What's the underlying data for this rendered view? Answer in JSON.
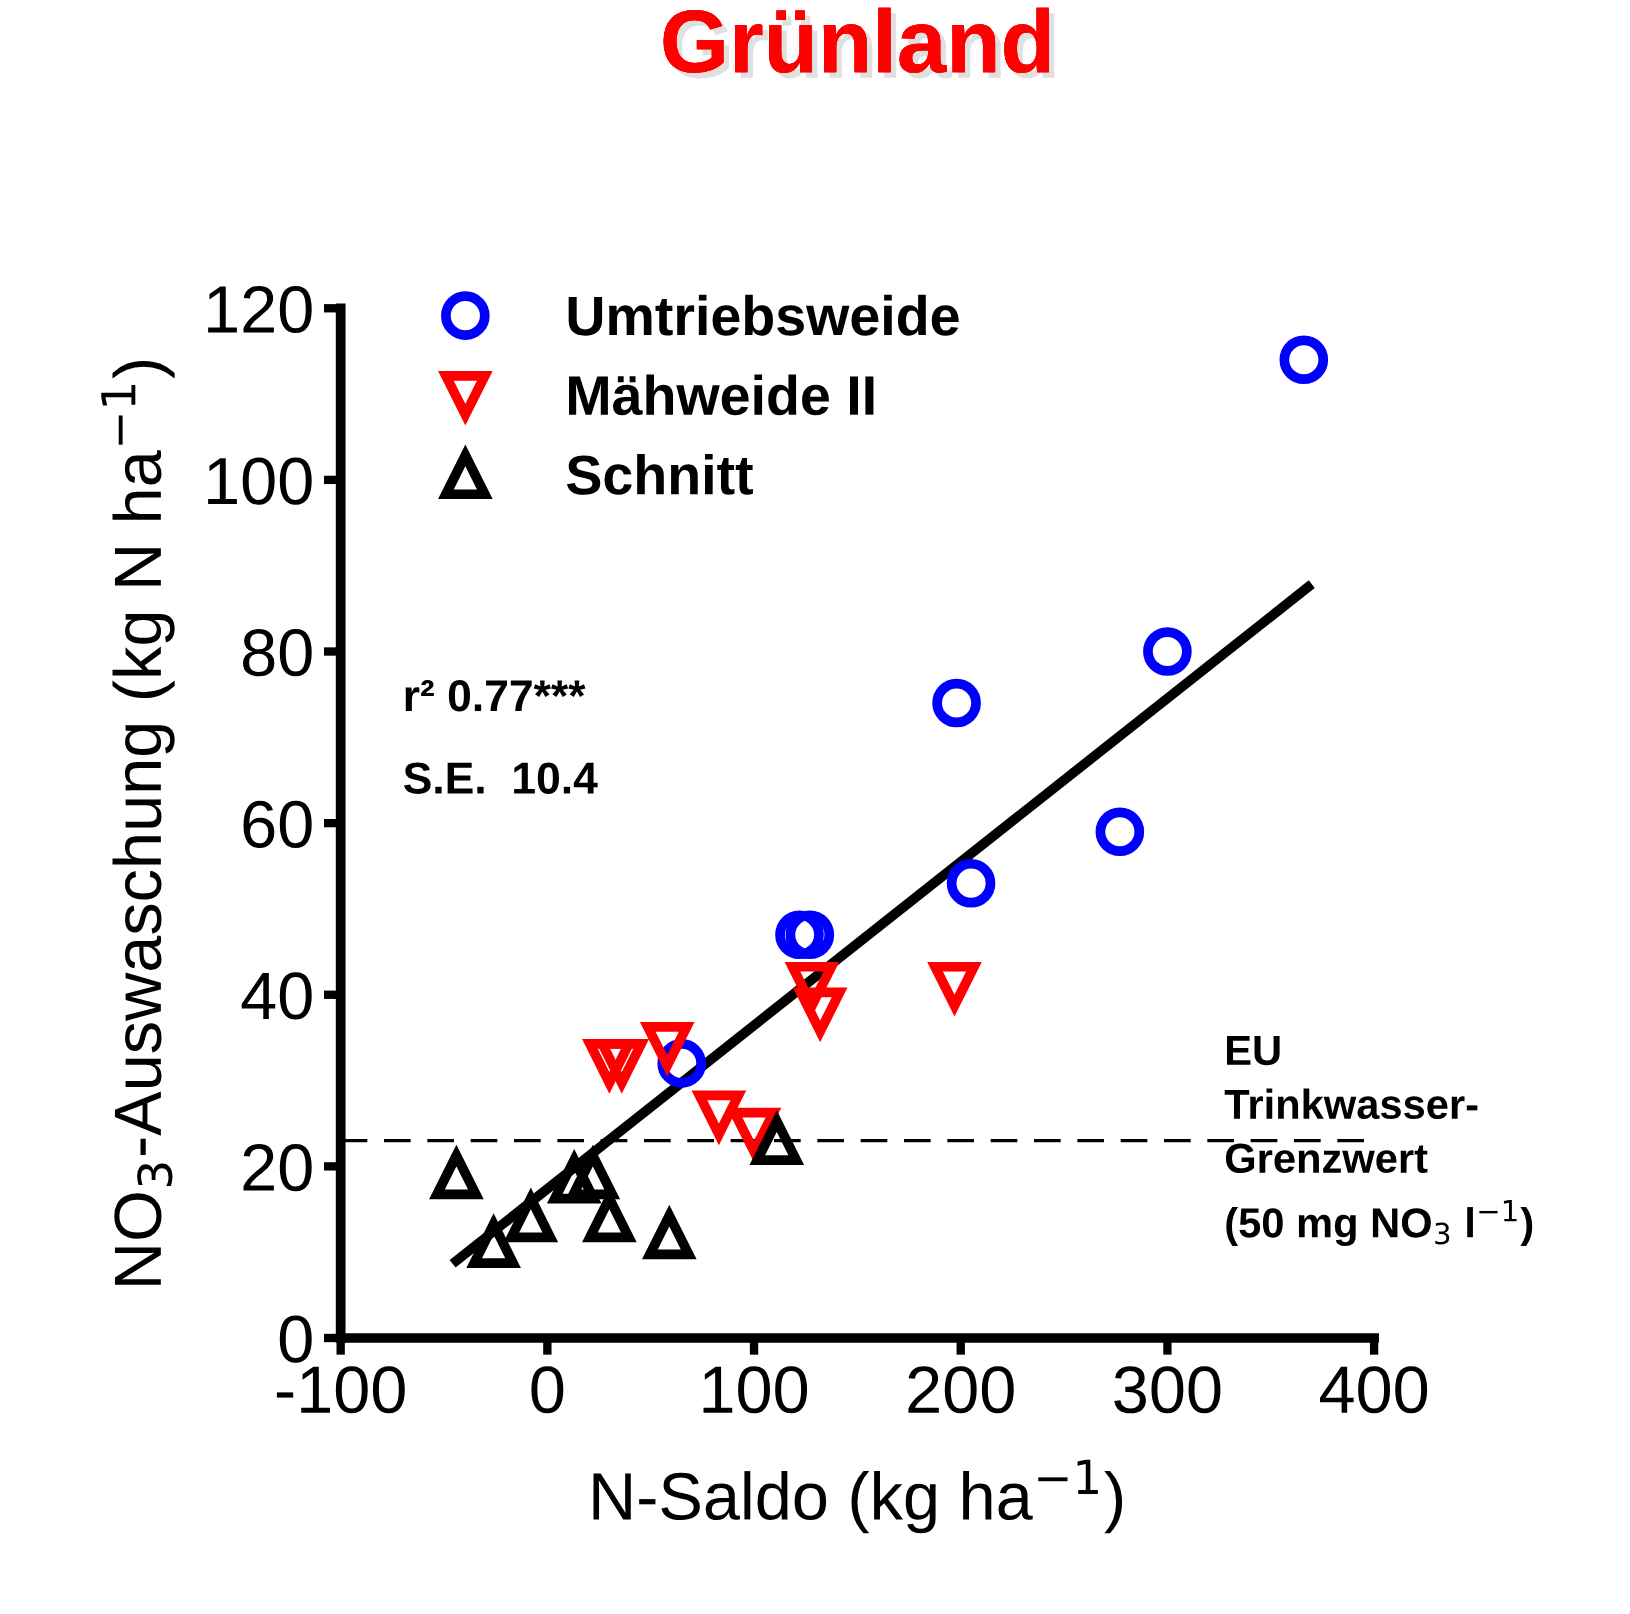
{
  "chart_data": {
    "type": "scatter",
    "title": "Grünland",
    "xlabel": "N-Saldo (kg ha$^{−1}$)",
    "ylabel": "NO$_{3}$-Auswaschung (kg N ha$^{−1}$)",
    "xlim": [
      -100,
      400
    ],
    "xticks": [
      -100,
      0,
      100,
      200,
      300,
      400
    ],
    "ylim": [
      0,
      120
    ],
    "yticks": [
      0,
      20,
      40,
      60,
      80,
      100,
      120
    ],
    "grid": false,
    "legend": "top left",
    "series": [
      {
        "name": "Umtriebsweide",
        "color": "#0000ff",
        "marker": "circle",
        "x": [
          65,
          122,
          127,
          198,
          205,
          277,
          300,
          366
        ],
        "values": [
          32,
          47,
          47,
          74,
          53,
          59,
          80,
          114
        ]
      },
      {
        "name": "Mähweide II",
        "color": "#ff0000",
        "marker": "triangle_down",
        "x": [
          30,
          36,
          58,
          83,
          100,
          128,
          132,
          197
        ],
        "values": [
          32,
          32,
          34,
          26,
          24,
          41,
          38,
          41
        ]
      },
      {
        "name": "Schnitt",
        "color": "#000000",
        "marker": "triangle",
        "x": [
          -44,
          -26,
          -8,
          13,
          22,
          30,
          59,
          111
        ],
        "values": [
          19,
          11,
          14,
          18.5,
          19,
          14,
          12,
          23
        ]
      },
      {
        "type": "line",
        "color": "#000000",
        "marker": "none",
        "line_style": "solid",
        "x": [
          -44,
          368
        ],
        "values": [
          9,
          87.5
        ]
      }
    ],
    "ref_lines": [
      {
        "axis": "y",
        "value": 23,
        "label": "EU\nTrinkwasser-\nGrenzwert\n(50 mg NO$_{3}$ l$^{−1}$)",
        "color": "#000000",
        "line_style": "dashed"
      }
    ],
    "annotations": [
      "r² 0.77***",
      "S.E.  10.4"
    ]
  }
}
